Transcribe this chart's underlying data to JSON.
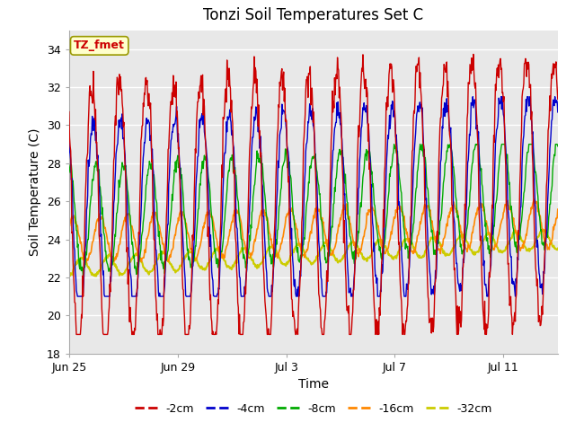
{
  "title": "Tonzi Soil Temperatures Set C",
  "xlabel": "Time",
  "ylabel": "Soil Temperature (C)",
  "ylim": [
    18,
    35
  ],
  "n_days": 18,
  "xtick_labels": [
    "Jun 25",
    "Jun 29",
    "Jul 3",
    "Jul 7",
    "Jul 11"
  ],
  "xtick_positions": [
    0,
    4,
    8,
    12,
    16
  ],
  "ytick_positions": [
    18,
    20,
    22,
    24,
    26,
    28,
    30,
    32,
    34
  ],
  "series": {
    "-2cm": {
      "color": "#cc0000",
      "linewidth": 1.0
    },
    "-4cm": {
      "color": "#0000cc",
      "linewidth": 1.0
    },
    "-8cm": {
      "color": "#00aa00",
      "linewidth": 1.0
    },
    "-16cm": {
      "color": "#ff8800",
      "linewidth": 1.2
    },
    "-32cm": {
      "color": "#cccc00",
      "linewidth": 1.5
    }
  },
  "fig_bg_color": "#ffffff",
  "plot_bg_color": "#e8e8e8",
  "grid_color": "#ffffff",
  "annotation_text": "TZ_fmet",
  "annotation_bg": "#ffffcc",
  "annotation_border": "#999900",
  "annotation_color": "#cc0000"
}
